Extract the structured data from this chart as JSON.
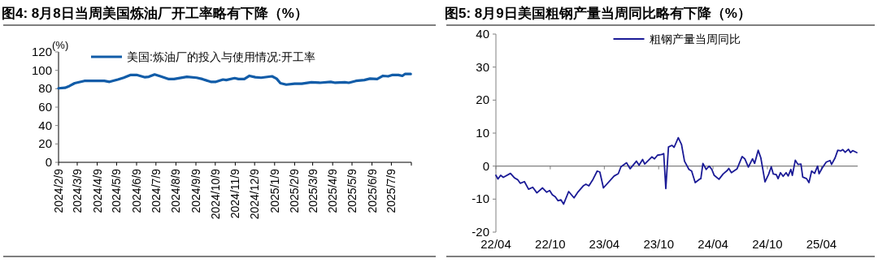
{
  "chart_data": [
    {
      "type": "line",
      "title": "图4:  8月8日当周美国炼油厂开工率略有下降（%）",
      "ylabel": "(%)",
      "legend": "top",
      "x": [
        "2024-02-09",
        "2024-02-19",
        "2024-02-26",
        "2024-03-05",
        "2024-03-20",
        "2024-04-07",
        "2024-04-20",
        "2024-04-28",
        "2024-05-11",
        "2024-05-20",
        "2024-05-31",
        "2024-06-09",
        "2024-06-22",
        "2024-06-28",
        "2024-07-07",
        "2024-07-16",
        "2024-07-29",
        "2024-08-06",
        "2024-08-26",
        "2024-09-10",
        "2024-09-19",
        "2024-10-02",
        "2024-10-10",
        "2024-10-21",
        "2024-10-26",
        "2024-11-08",
        "2024-11-14",
        "2024-11-23",
        "2024-12-01",
        "2024-12-10",
        "2024-12-19",
        "2025-01-05",
        "2025-01-12",
        "2025-01-18",
        "2025-01-27",
        "2025-02-09",
        "2025-02-20",
        "2025-03-07",
        "2025-03-20",
        "2025-04-06",
        "2025-04-13",
        "2025-04-28",
        "2025-05-04",
        "2025-05-15",
        "2025-05-28",
        "2025-06-06",
        "2025-06-17",
        "2025-06-26",
        "2025-07-04",
        "2025-07-11",
        "2025-07-20",
        "2025-07-26",
        "2025-07-30",
        "2025-08-08"
      ],
      "series": [
        {
          "name": "美国:炼油厂的投入与使用情况:开工率",
          "color": "#115ca8",
          "values": [
            80.5,
            81,
            83,
            86,
            88.5,
            88.5,
            88.5,
            87.5,
            90,
            92,
            95,
            95,
            92.5,
            93,
            95.5,
            93.5,
            90.5,
            90.5,
            93,
            92,
            90.5,
            87.5,
            87.5,
            90,
            89.5,
            91.5,
            90.5,
            90.5,
            94,
            92.5,
            92,
            93.5,
            91,
            86,
            84.5,
            85.5,
            85.5,
            87,
            86.5,
            87.5,
            86.5,
            87,
            86.5,
            88.5,
            89.5,
            91,
            90.5,
            94,
            93.5,
            95,
            95,
            94,
            96,
            96
          ]
        }
      ],
      "xlim": [
        "2024-02-09",
        "2025-08-09"
      ],
      "xticks": [
        {
          "value": "2024-02-09",
          "label": "2024/2/9"
        },
        {
          "value": "2024-03-09",
          "label": "2024/3/9"
        },
        {
          "value": "2024-04-09",
          "label": "2024/4/9"
        },
        {
          "value": "2024-05-09",
          "label": "2024/5/9"
        },
        {
          "value": "2024-06-09",
          "label": "2024/6/9"
        },
        {
          "value": "2024-07-09",
          "label": "2024/7/9"
        },
        {
          "value": "2024-08-09",
          "label": "2024/8/9"
        },
        {
          "value": "2024-09-09",
          "label": "2024/9/9"
        },
        {
          "value": "2024-10-09",
          "label": "2024/10/9"
        },
        {
          "value": "2024-11-09",
          "label": "2024/11/9"
        },
        {
          "value": "2024-12-09",
          "label": "2024/12/9"
        },
        {
          "value": "2025-01-09",
          "label": "2025/1/9"
        },
        {
          "value": "2025-02-09",
          "label": "2025/2/9"
        },
        {
          "value": "2025-03-09",
          "label": "2025/3/9"
        },
        {
          "value": "2025-04-09",
          "label": "2025/4/9"
        },
        {
          "value": "2025-05-09",
          "label": "2025/5/9"
        },
        {
          "value": "2025-06-09",
          "label": "2025/6/9"
        },
        {
          "value": "2025-07-09",
          "label": "2025/7/9"
        },
        {
          "value": "2025-08-09",
          "label": null
        }
      ],
      "ylim": [
        0,
        120
      ],
      "yticks": [
        0,
        20,
        40,
        60,
        80,
        100,
        120
      ]
    },
    {
      "type": "line",
      "title": "图5:  8月9日美国粗钢产量当周同比略有下降（%）",
      "legend": "top",
      "x": [
        "2022-04-01",
        "2022-04-08",
        "2022-04-17",
        "2022-04-26",
        "2022-05-20",
        "2022-06-03",
        "2022-06-13",
        "2022-06-22",
        "2022-07-06",
        "2022-07-20",
        "2022-08-03",
        "2022-08-17",
        "2022-09-05",
        "2022-09-19",
        "2022-09-29",
        "2022-10-08",
        "2022-10-18",
        "2022-10-27",
        "2022-11-06",
        "2022-11-15",
        "2022-12-02",
        "2022-12-20",
        "2023-01-01",
        "2023-01-20",
        "2023-01-29",
        "2023-02-08",
        "2023-02-22",
        "2023-03-08",
        "2023-03-17",
        "2023-03-29",
        "2023-05-04",
        "2023-05-18",
        "2023-05-27",
        "2023-06-15",
        "2023-06-27",
        "2023-07-18",
        "2023-07-27",
        "2023-08-08",
        "2023-08-15",
        "2023-09-08",
        "2023-09-17",
        "2023-09-27",
        "2023-10-11",
        "2023-10-18",
        "2023-10-25",
        "2023-11-03",
        "2023-11-15",
        "2023-11-22",
        "2023-12-06",
        "2023-12-17",
        "2023-12-27",
        "2024-01-11",
        "2024-01-20",
        "2024-02-01",
        "2024-02-15",
        "2024-02-20",
        "2024-02-27",
        "2024-03-09",
        "2024-03-19",
        "2024-03-28",
        "2024-04-05",
        "2024-04-21",
        "2024-05-05",
        "2024-05-19",
        "2024-05-24",
        "2024-06-02",
        "2024-06-21",
        "2024-07-08",
        "2024-07-17",
        "2024-07-29",
        "2024-08-12",
        "2024-08-19",
        "2024-08-31",
        "2024-09-09",
        "2024-09-23",
        "2024-10-05",
        "2024-10-14",
        "2024-10-21",
        "2024-10-31",
        "2024-11-06",
        "2024-11-14",
        "2024-11-23",
        "2024-12-03",
        "2024-12-10",
        "2024-12-19",
        "2024-12-24",
        "2025-01-03",
        "2025-01-12",
        "2025-01-22",
        "2025-01-28",
        "2025-02-10",
        "2025-02-18",
        "2025-02-27",
        "2025-03-09",
        "2025-03-19",
        "2025-03-24",
        "2025-04-04",
        "2025-04-17",
        "2025-04-30",
        "2025-05-05",
        "2025-05-17",
        "2025-05-26",
        "2025-06-05",
        "2025-06-12",
        "2025-06-20",
        "2025-07-01",
        "2025-07-08",
        "2025-07-15",
        "2025-07-29"
      ],
      "series": [
        {
          "name": "粗钢产量当周同比",
          "color": "#1a1a96",
          "values": [
            -2.8,
            -3.9,
            -2.8,
            -3.4,
            -2.2,
            -3.6,
            -4.1,
            -5.2,
            -4.7,
            -7.0,
            -6.4,
            -8.1,
            -6.6,
            -7.9,
            -7.4,
            -8.7,
            -9.3,
            -10.5,
            -10.2,
            -11.5,
            -7.7,
            -9.6,
            -8.0,
            -6.0,
            -5.5,
            -6.0,
            -4.0,
            -1.5,
            -1.8,
            -6.6,
            -3.0,
            -2.3,
            -0.2,
            1.0,
            -0.8,
            1.5,
            0.3,
            2.0,
            0.6,
            2.8,
            2.2,
            3.3,
            3.5,
            3.8,
            -6.8,
            5.8,
            6.3,
            5.7,
            8.6,
            6.5,
            1.5,
            -1.0,
            -1.5,
            -5.0,
            -4.0,
            -3.8,
            0.8,
            -1.0,
            0.0,
            -1.0,
            -2.8,
            -4.0,
            -2.4,
            -1.3,
            -0.7,
            -2.0,
            -0.8,
            2.9,
            2.2,
            -0.3,
            2.2,
            0.8,
            4.8,
            2.5,
            -4.8,
            -2.5,
            -0.2,
            -2.4,
            -2.6,
            -3.8,
            -2.0,
            -3.1,
            -2.0,
            -3.0,
            -1.0,
            -2.8,
            1.8,
            0.5,
            0.6,
            -3.3,
            -3.8,
            -5.0,
            -1.5,
            -2.2,
            0.0,
            -2.3,
            -0.5,
            1.2,
            1.7,
            0.5,
            2.5,
            4.8,
            4.6,
            5.0,
            4.2,
            5.1,
            4.1,
            4.7,
            4.1
          ]
        }
      ],
      "xlim": [
        "2022-04-01",
        "2025-08-01"
      ],
      "xticks": [
        {
          "value": "2022-04-01",
          "label": "22/04"
        },
        {
          "value": "2022-10-01",
          "label": "22/10"
        },
        {
          "value": "2023-04-01",
          "label": "23/04"
        },
        {
          "value": "2023-10-01",
          "label": "23/10"
        },
        {
          "value": "2024-04-01",
          "label": "24/04"
        },
        {
          "value": "2024-10-01",
          "label": "24/10"
        },
        {
          "value": "2025-04-01",
          "label": "25/04"
        }
      ],
      "ylim": [
        -20,
        40
      ],
      "yticks": [
        -20,
        -10,
        0,
        10,
        20,
        30,
        40
      ]
    }
  ]
}
